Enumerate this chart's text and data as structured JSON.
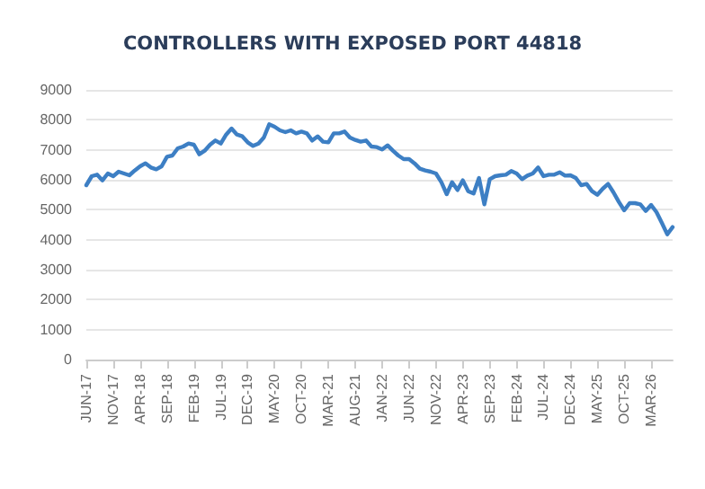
{
  "chart_data": {
    "type": "line",
    "title": "CONTROLLERS WITH EXPOSED PORT 44818",
    "categories": [
      "JUN-17",
      null,
      null,
      null,
      null,
      "NOV-17",
      null,
      null,
      null,
      null,
      "APR-18",
      null,
      null,
      null,
      null,
      "SEP-18",
      null,
      null,
      null,
      null,
      "FEB-19",
      null,
      null,
      null,
      null,
      "JUL-19",
      null,
      null,
      null,
      null,
      "DEC-19",
      null,
      null,
      null,
      null,
      "MAY-20",
      null,
      null,
      null,
      null,
      "OCT-20",
      null,
      null,
      null,
      null,
      "MAR-21",
      null,
      null,
      null,
      null,
      "AUG-21",
      null,
      null,
      null,
      null,
      "JAN-22",
      null,
      null,
      null,
      null,
      "JUN-22",
      null,
      null,
      null,
      null,
      "NOV-22",
      null,
      null,
      null,
      null,
      "APR-23",
      null,
      null,
      null,
      null,
      "SEP-23",
      null,
      null,
      null,
      null,
      "FEB-24",
      null,
      null,
      null,
      null,
      "JUL-24",
      null,
      null,
      null,
      null,
      "DEC-24",
      null,
      null,
      null,
      null,
      "MAY-25",
      null,
      null,
      null,
      null,
      "OCT-25",
      null,
      null,
      null,
      null,
      "MAR-26",
      null,
      null,
      null,
      null
    ],
    "series": [
      {
        "color": "#3d7fc4",
        "values": [
          5820,
          6120,
          6170,
          5980,
          6210,
          6120,
          6270,
          6210,
          6150,
          6310,
          6450,
          6550,
          6410,
          6350,
          6450,
          6770,
          6810,
          7050,
          7110,
          7210,
          7170,
          6850,
          6970,
          7170,
          7310,
          7210,
          7510,
          7710,
          7510,
          7450,
          7250,
          7130,
          7210,
          7410,
          7850,
          7770,
          7650,
          7590,
          7650,
          7550,
          7610,
          7550,
          7310,
          7450,
          7270,
          7250,
          7550,
          7550,
          7610,
          7410,
          7330,
          7270,
          7310,
          7110,
          7090,
          7010,
          7150,
          6970,
          6810,
          6690,
          6690,
          6550,
          6370,
          6310,
          6270,
          6210,
          5920,
          5520,
          5920,
          5660,
          5980,
          5620,
          5540,
          6060,
          5180,
          6020,
          6120,
          6150,
          6170,
          6290,
          6210,
          6020,
          6140,
          6210,
          6410,
          6120,
          6170,
          6170,
          6250,
          6140,
          6150,
          6060,
          5820,
          5860,
          5620,
          5500,
          5700,
          5860,
          5580,
          5260,
          4980,
          5220,
          5220,
          5180,
          4960,
          5160,
          4920,
          4560,
          4180,
          4420
        ]
      }
    ],
    "ylim": [
      0,
      9000
    ],
    "yticks": [
      0,
      1000,
      2000,
      3000,
      4000,
      5000,
      6000,
      7000,
      8000,
      9000
    ],
    "grid": "y",
    "marker": "none",
    "line_style": "solid"
  }
}
